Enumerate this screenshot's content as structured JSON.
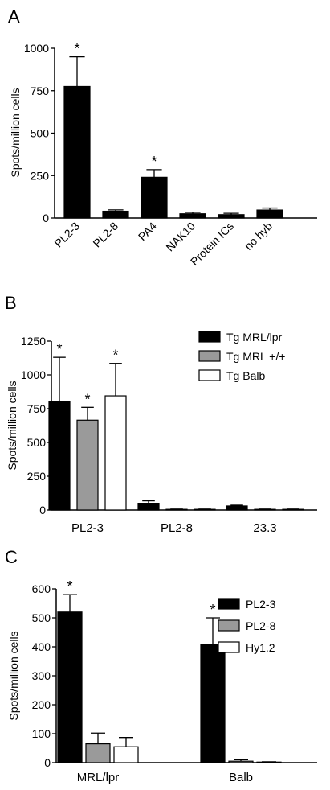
{
  "chart_data": [
    {
      "panel": "A",
      "type": "bar",
      "ylabel": "Spots/million cells",
      "ylim": [
        0,
        1000
      ],
      "yticks": [
        "0",
        "250",
        "500",
        "750",
        "1000"
      ],
      "categories": [
        "PL2-3",
        "PL2-8",
        "PA4",
        "NAK10",
        "Protein ICs",
        "no hyb"
      ],
      "series": [
        {
          "values": [
            775,
            40,
            240,
            25,
            20,
            47
          ],
          "errors": [
            175,
            8,
            45,
            8,
            8,
            12
          ],
          "significant": [
            true,
            false,
            true,
            false,
            false,
            false
          ]
        }
      ],
      "colors": [
        "#000000"
      ]
    },
    {
      "panel": "B",
      "type": "bar",
      "ylabel": "Spots/million cells",
      "ylim": [
        0,
        1250
      ],
      "yticks": [
        "0",
        "250",
        "500",
        "750",
        "1000",
        "1250"
      ],
      "categories": [
        "PL2-3",
        "PL2-8",
        "23.3"
      ],
      "legend_position": "top-right",
      "series": [
        {
          "name": "Tg MRL/lpr",
          "values": [
            800,
            50,
            30
          ],
          "errors": [
            330,
            18,
            6
          ],
          "significant": [
            true,
            false,
            false
          ]
        },
        {
          "name": "Tg MRL +/+",
          "values": [
            665,
            5,
            5
          ],
          "errors": [
            95,
            2,
            2
          ],
          "significant": [
            true,
            false,
            false
          ]
        },
        {
          "name": "Tg Balb",
          "values": [
            845,
            5,
            5
          ],
          "errors": [
            240,
            2,
            2
          ],
          "significant": [
            true,
            false,
            false
          ]
        }
      ],
      "colors": [
        "#000000",
        "#9a9a9a",
        "#ffffff"
      ]
    },
    {
      "panel": "C",
      "type": "bar",
      "ylabel": "Spots/million cells",
      "ylim": [
        0,
        600
      ],
      "yticks": [
        "0",
        "100",
        "200",
        "300",
        "400",
        "500",
        "600"
      ],
      "categories": [
        "MRL/lpr",
        "Balb"
      ],
      "legend_position": "top-right",
      "series": [
        {
          "name": "PL2-3",
          "values": [
            520,
            408
          ],
          "errors": [
            60,
            92
          ],
          "significant": [
            true,
            true
          ]
        },
        {
          "name": "PL2-8",
          "values": [
            65,
            5
          ],
          "errors": [
            37,
            5
          ],
          "significant": [
            false,
            false
          ]
        },
        {
          "name": "Hy1.2",
          "values": [
            55,
            2
          ],
          "errors": [
            32,
            1
          ],
          "significant": [
            false,
            false
          ]
        }
      ],
      "colors": [
        "#000000",
        "#9a9a9a",
        "#ffffff"
      ]
    }
  ]
}
